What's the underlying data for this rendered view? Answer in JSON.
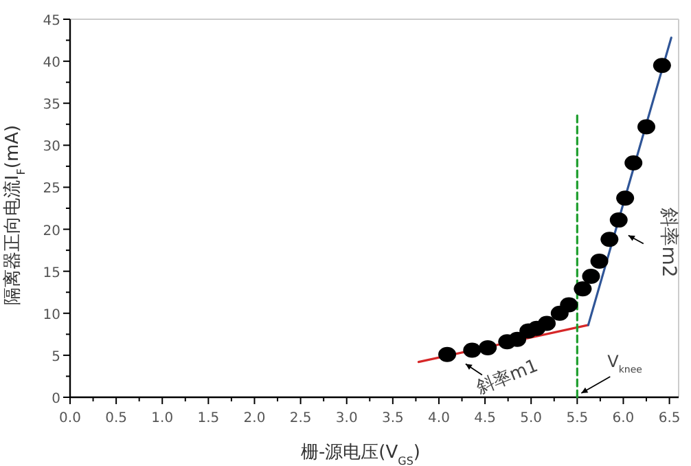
{
  "chart_data": {
    "type": "scatter",
    "xlabel": "栅-源电压(V$_{GS}$)",
    "ylabel": "隔离器正向电流I$_{F}$(mA)",
    "xlim": [
      0,
      6.6
    ],
    "ylim": [
      0,
      45
    ],
    "xticks": [
      {
        "value": 0,
        "label": "0.0"
      },
      {
        "value": 0.5,
        "label": "0.5"
      },
      {
        "value": 1,
        "label": "1.0"
      },
      {
        "value": 1.5,
        "label": "1.5"
      },
      {
        "value": 2,
        "label": "2.0"
      },
      {
        "value": 2.5,
        "label": "2.5"
      },
      {
        "value": 3,
        "label": "3.0"
      },
      {
        "value": 3.5,
        "label": "3.5"
      },
      {
        "value": 4,
        "label": "4.0"
      },
      {
        "value": 4.5,
        "label": "4.5"
      },
      {
        "value": 5,
        "label": "5.0"
      },
      {
        "value": 5.5,
        "label": "5.5"
      },
      {
        "value": 6,
        "label": "6.0"
      },
      {
        "value": 6.5,
        "label": "6.5"
      }
    ],
    "yticks": [
      0,
      5,
      10,
      15,
      20,
      25,
      30,
      35,
      40,
      45
    ],
    "grid": false,
    "series": [
      {
        "marker": "circle",
        "color": "#000000",
        "x": [
          4.09,
          4.36,
          4.53,
          4.74,
          4.85,
          4.97,
          5.06,
          5.17,
          5.31,
          5.41,
          5.56,
          5.65,
          5.74,
          5.85,
          5.95,
          6.02,
          6.11,
          6.25,
          6.42
        ],
        "values": [
          5.1,
          5.6,
          5.9,
          6.6,
          6.9,
          7.9,
          8.2,
          8.8,
          10.0,
          11.0,
          12.9,
          14.4,
          16.2,
          18.8,
          21.1,
          23.7,
          27.9,
          32.2,
          39.5
        ]
      },
      {
        "type": "line",
        "color": "#d62728",
        "x": [
          3.78,
          5.62
        ],
        "values": [
          4.2,
          8.6
        ]
      },
      {
        "type": "line",
        "color": "#2f5597",
        "x": [
          5.62,
          6.52
        ],
        "values": [
          8.6,
          42.8
        ]
      },
      {
        "type": "line",
        "color": "#1e9e2e",
        "line_style": "dashed",
        "x": [
          5.5,
          5.5
        ],
        "values": [
          0,
          34
        ]
      }
    ],
    "annotations": [
      {
        "text": "斜率m1",
        "x": 4.26,
        "y": 4.3
      },
      {
        "text": "斜率m2",
        "x": 6.01,
        "y": 19.6
      },
      {
        "text": "V$_{knee}$",
        "x": 5.5,
        "y": 0
      }
    ]
  }
}
